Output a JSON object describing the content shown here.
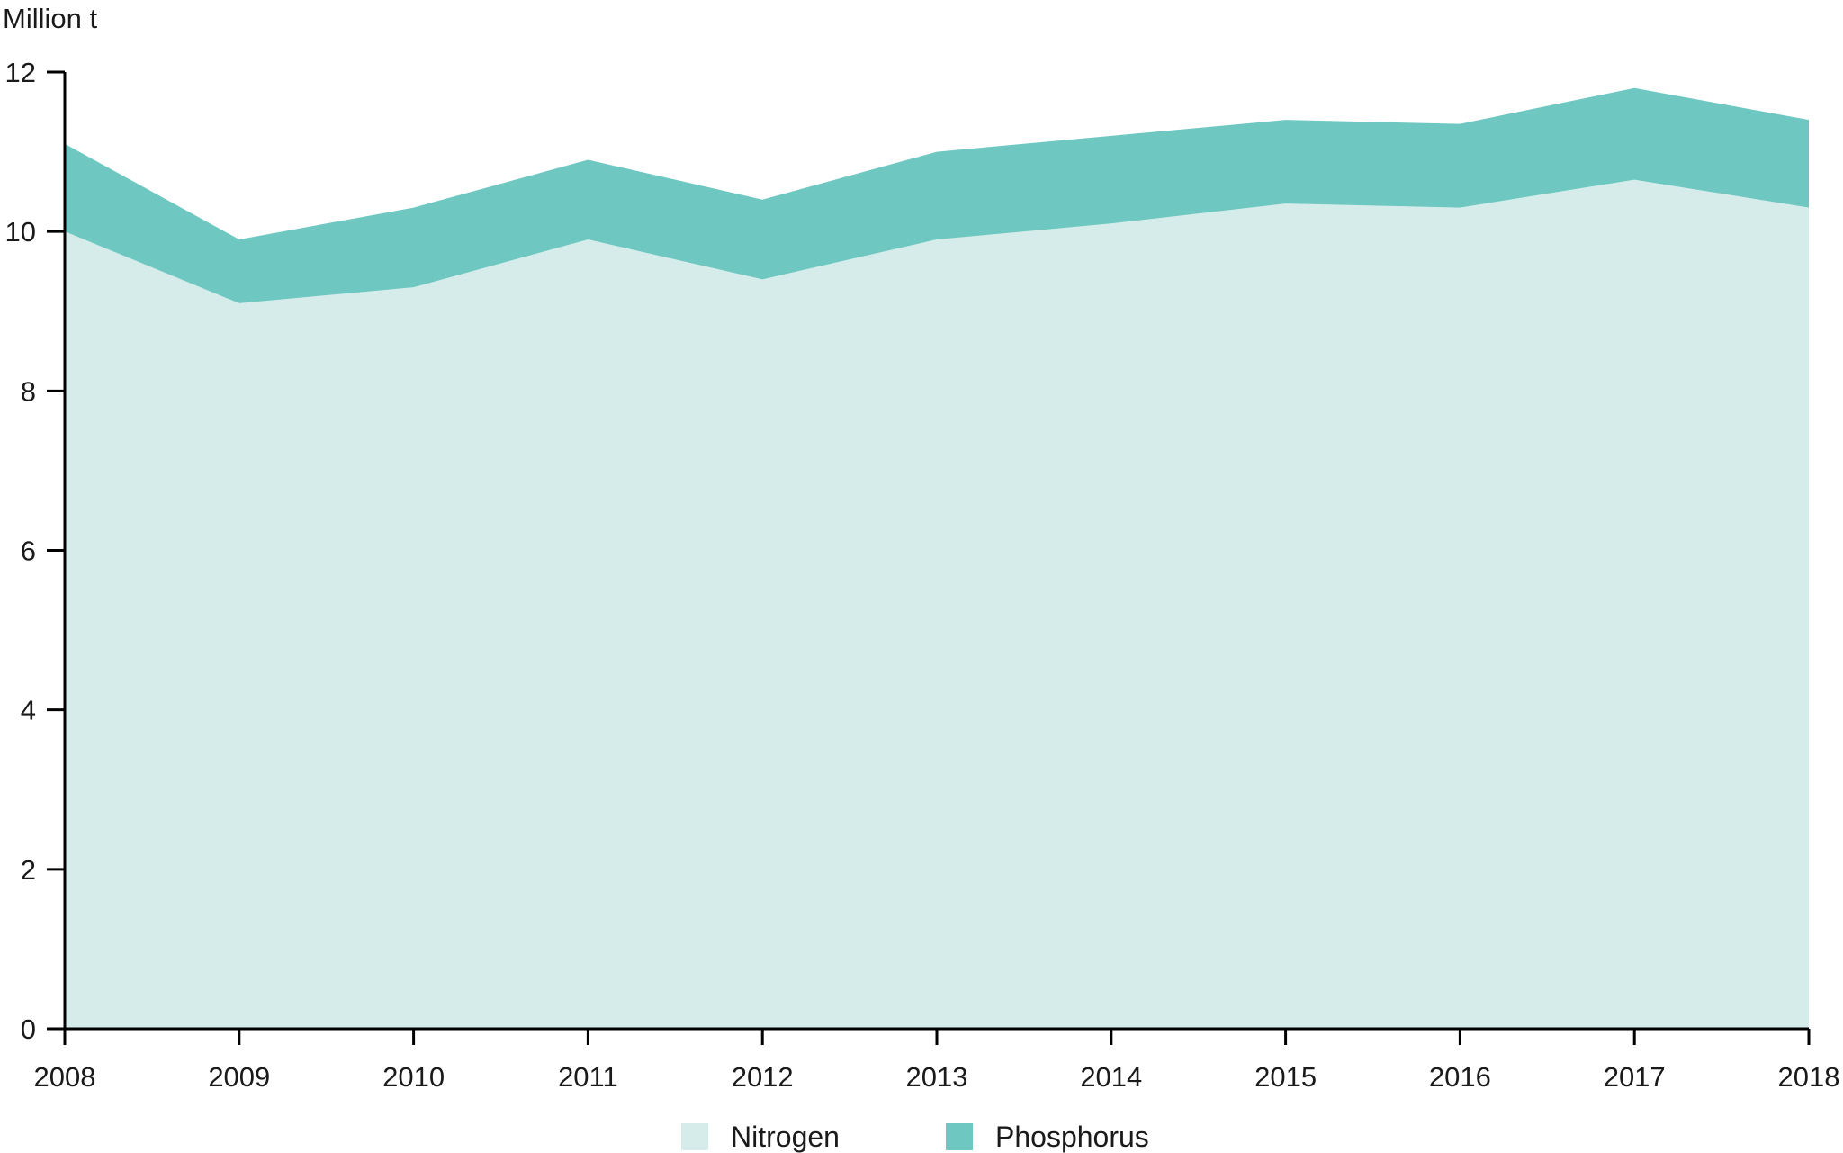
{
  "chart": {
    "unit_label": "Million t"
  },
  "chart_data": {
    "type": "area",
    "stacked": true,
    "title": "",
    "xlabel": "",
    "ylabel": "Million t",
    "x": [
      2008,
      2009,
      2010,
      2011,
      2012,
      2013,
      2014,
      2015,
      2016,
      2017,
      2018
    ],
    "series": [
      {
        "name": "Nitrogen",
        "color": "#D5ECEA",
        "values": [
          10.0,
          9.1,
          9.3,
          9.9,
          9.4,
          9.9,
          10.1,
          10.35,
          10.3,
          10.65,
          10.3
        ]
      },
      {
        "name": "Phosphorus",
        "color": "#6EC8C1",
        "values": [
          1.1,
          0.8,
          1.0,
          1.0,
          1.0,
          1.1,
          1.1,
          1.05,
          1.05,
          1.15,
          1.1
        ]
      }
    ],
    "stacked_totals": [
      11.1,
      9.9,
      10.3,
      10.9,
      10.4,
      11.0,
      11.2,
      11.4,
      11.35,
      11.8,
      11.4
    ],
    "ylim": [
      0,
      12
    ],
    "yticks": [
      0,
      2,
      4,
      6,
      8,
      10,
      12
    ],
    "grid": false,
    "legend_position": "bottom",
    "axis_color": "#000000",
    "text_color": "#1a1a1a"
  }
}
